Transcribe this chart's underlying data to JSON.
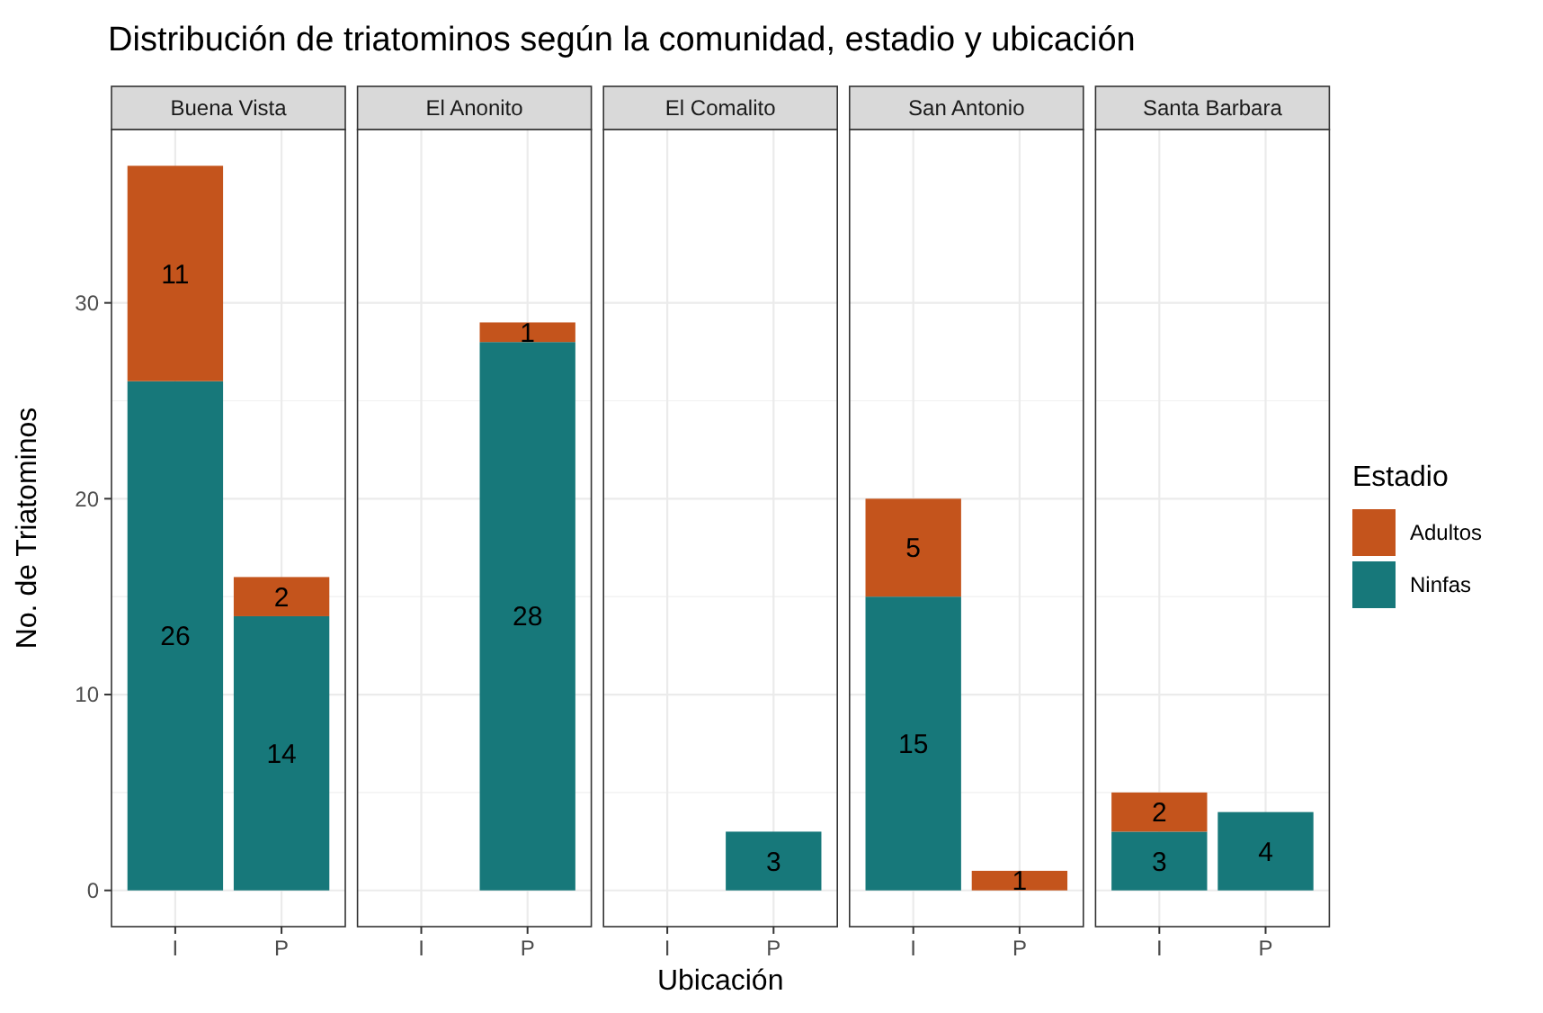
{
  "chart_data": [
    {
      "type": "bar",
      "title": "Distribución de triatominos según la comunidad, estadio y ubicación",
      "subtitle": "Buena Vista",
      "ylabel": "No. de Triatominos",
      "categories": [
        "I",
        "P"
      ],
      "stacked": true,
      "grid": true,
      "ylim": [
        -1.85,
        38.85
      ],
      "yticks": [
        0,
        10,
        20,
        30
      ],
      "series": [
        {
          "color": "#17787a",
          "values": [
            26,
            14
          ],
          "value_labels": [
            "26",
            "14"
          ]
        },
        {
          "color": "#c4541c",
          "values": [
            11,
            2
          ],
          "value_labels": [
            "11",
            "2"
          ]
        }
      ]
    },
    {
      "type": "bar",
      "subtitle": "El Anonito",
      "categories": [
        "I",
        "P"
      ],
      "stacked": true,
      "grid": true,
      "ylim": [
        -1.85,
        38.85
      ],
      "yticks": [
        0,
        10,
        20,
        30
      ],
      "tick_labels": "x",
      "series": [
        {
          "color": "#17787a",
          "values": [
            null,
            28
          ],
          "value_labels": [
            null,
            "28"
          ]
        },
        {
          "color": "#c4541c",
          "values": [
            null,
            1
          ],
          "value_labels": [
            null,
            "1"
          ]
        }
      ]
    },
    {
      "type": "bar",
      "subtitle": "El Comalito",
      "xlabel": "Ubicación",
      "categories": [
        "I",
        "P"
      ],
      "stacked": true,
      "grid": true,
      "ylim": [
        -1.85,
        38.85
      ],
      "yticks": [
        0,
        10,
        20,
        30
      ],
      "tick_labels": "x",
      "series": [
        {
          "color": "#17787a",
          "values": [
            null,
            3
          ],
          "value_labels": [
            null,
            "3"
          ]
        }
      ]
    },
    {
      "type": "bar",
      "subtitle": "San Antonio",
      "categories": [
        "I",
        "P"
      ],
      "stacked": true,
      "grid": true,
      "ylim": [
        -1.85,
        38.85
      ],
      "yticks": [
        0,
        10,
        20,
        30
      ],
      "tick_labels": "x",
      "series": [
        {
          "color": "#17787a",
          "values": [
            15,
            null
          ],
          "value_labels": [
            "15",
            null
          ]
        },
        {
          "color": "#c4541c",
          "values": [
            5,
            1
          ],
          "value_labels": [
            "5",
            "1"
          ]
        }
      ]
    },
    {
      "type": "bar",
      "subtitle": "Santa Barbara",
      "categories": [
        "I",
        "P"
      ],
      "stacked": true,
      "grid": true,
      "ylim": [
        -1.85,
        38.85
      ],
      "yticks": [
        0,
        10,
        20,
        30
      ],
      "tick_labels": "x",
      "legend": "right",
      "legend_title": "Estadio",
      "series": [
        {
          "name": "Ninfas",
          "color": "#17787a",
          "values": [
            3,
            4
          ],
          "value_labels": [
            "3",
            "4"
          ]
        },
        {
          "name": "Adultos",
          "color": "#c4541c",
          "values": [
            2,
            null
          ],
          "value_labels": [
            "2",
            null
          ]
        }
      ]
    }
  ]
}
